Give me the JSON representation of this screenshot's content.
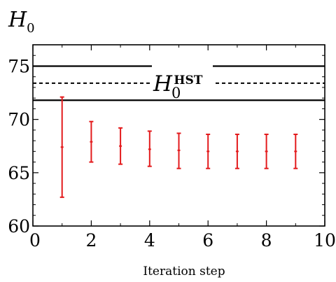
{
  "chart_data": {
    "type": "scatter",
    "title": "",
    "ylabel": "H",
    "ylabel_sub": "0",
    "xlabel": "Iteration step",
    "xlim": [
      0,
      10
    ],
    "ylim": [
      60,
      77
    ],
    "x_ticks": [
      0,
      2,
      4,
      6,
      8,
      10
    ],
    "y_ticks": [
      60,
      65,
      70,
      75
    ],
    "reference": {
      "label_main": "H",
      "label_sub": "0",
      "label_sup": "HST",
      "value": 73.4,
      "upper": 75.0,
      "lower": 71.8
    },
    "series": [
      {
        "color": "#e31a1c",
        "points": [
          {
            "x": 1,
            "y": 67.4,
            "yerr_low": 62.7,
            "yerr_high": 72.1
          },
          {
            "x": 2,
            "y": 67.9,
            "yerr_low": 66.0,
            "yerr_high": 69.8
          },
          {
            "x": 3,
            "y": 67.5,
            "yerr_low": 65.8,
            "yerr_high": 69.2
          },
          {
            "x": 4,
            "y": 67.2,
            "yerr_low": 65.6,
            "yerr_high": 68.9
          },
          {
            "x": 5,
            "y": 67.1,
            "yerr_low": 65.4,
            "yerr_high": 68.7
          },
          {
            "x": 6,
            "y": 67.0,
            "yerr_low": 65.4,
            "yerr_high": 68.6
          },
          {
            "x": 7,
            "y": 67.0,
            "yerr_low": 65.4,
            "yerr_high": 68.6
          },
          {
            "x": 8,
            "y": 67.0,
            "yerr_low": 65.4,
            "yerr_high": 68.6
          },
          {
            "x": 9,
            "y": 67.0,
            "yerr_low": 65.4,
            "yerr_high": 68.6
          }
        ]
      }
    ],
    "grid": false,
    "legend": "none"
  }
}
